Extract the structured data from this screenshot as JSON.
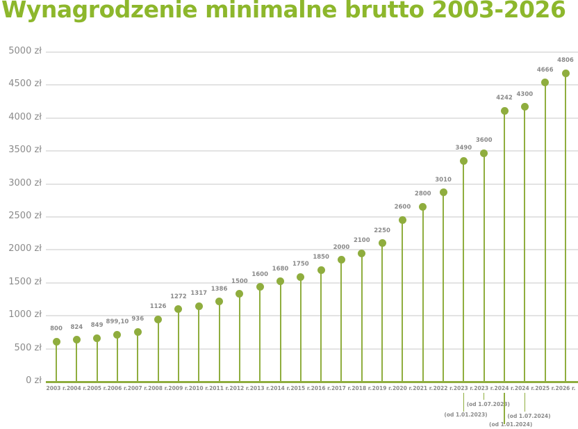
{
  "title": "Wynagrodzenie minimalne brutto 2003-2026",
  "colors": {
    "title": "#8db72c",
    "series": "#8fad3e",
    "grid": "#e3e3e3",
    "text": "#8a8a8a"
  },
  "chart_data": {
    "type": "lollipop",
    "title": "Wynagrodzenie minimalne brutto 2003-2026",
    "xlabel": "",
    "ylabel": "",
    "ylim": [
      0,
      5000
    ],
    "yticks": [
      "0 zł",
      "500 zł",
      "1000 zł",
      "1500 zł",
      "2000 zł",
      "2500 zł",
      "3000 zł",
      "3500 zł",
      "4000 zł",
      "4500 zł",
      "5000 zł"
    ],
    "grid": true,
    "categories": [
      "2003 r.",
      "2004 r.",
      "2005 r.",
      "2006 r.",
      "2007 r.",
      "2008 r.",
      "2009 r.",
      "2010 r.",
      "2011 r.",
      "2012 r.",
      "2013 r.",
      "2014 r.",
      "2015 r.",
      "2016 r.",
      "2017 r.",
      "2018 r.",
      "2019 r.",
      "2020 r.",
      "2021 r.",
      "2022 r.",
      "2023 r.",
      "2023 r.",
      "2024 r.",
      "2024 r.",
      "2025 r.",
      "2026 r."
    ],
    "labels": [
      "800",
      "824",
      "849",
      "899,10",
      "936",
      "1126",
      "1272",
      "1317",
      "1386",
      "1500",
      "1600",
      "1680",
      "1750",
      "1850",
      "2000",
      "2100",
      "2250",
      "2600",
      "2800",
      "3010",
      "3490",
      "3600",
      "4242",
      "4300",
      "4666",
      "4806"
    ],
    "values": [
      800,
      824,
      849,
      899.1,
      936,
      1126,
      1272,
      1317,
      1386,
      1500,
      1600,
      1680,
      1750,
      1850,
      2000,
      2100,
      2250,
      2600,
      2800,
      3010,
      3490,
      3600,
      4242,
      4300,
      4666,
      4806
    ],
    "annotations": [
      {
        "index": 20,
        "text": "(od 1.01.2023)"
      },
      {
        "index": 21,
        "text": "(od 1.07.2023)"
      },
      {
        "index": 22,
        "text": "(od 1.01.2024)"
      },
      {
        "index": 23,
        "text": "(od 1.07.2024)"
      }
    ]
  }
}
